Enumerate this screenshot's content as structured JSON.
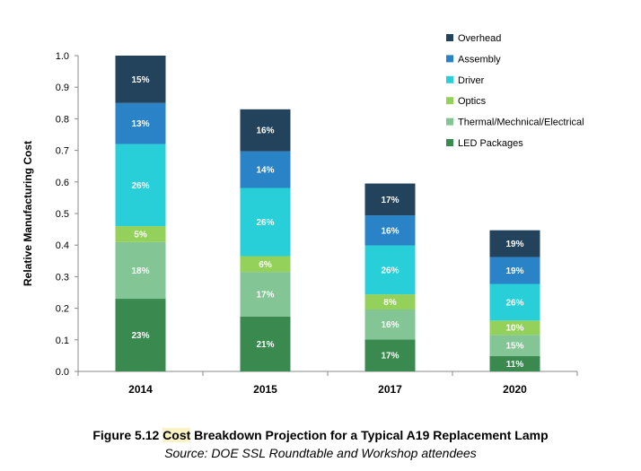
{
  "chart_data": {
    "type": "bar",
    "stacked": true,
    "ylabel": "Relative Manufacturing Cost",
    "xlabel": "",
    "ylim": [
      0,
      1.0
    ],
    "yticks": [
      "0.0",
      "0.1",
      "0.2",
      "0.3",
      "0.4",
      "0.5",
      "0.6",
      "0.7",
      "0.8",
      "0.9",
      "1.0"
    ],
    "grid": false,
    "legend_position": "top-right",
    "categories": [
      "2014",
      "2015",
      "2017",
      "2020"
    ],
    "totals": [
      1.0,
      0.83,
      0.595,
      0.447
    ],
    "series": [
      {
        "name": "LED Packages",
        "color": "#3a8a4f",
        "labels": [
          "23%",
          "21%",
          "17%",
          "11%"
        ],
        "values": [
          0.23,
          0.174,
          0.101,
          0.049
        ]
      },
      {
        "name": "Thermal/Mechnical/Electrical",
        "color": "#83c594",
        "labels": [
          "18%",
          "17%",
          "16%",
          "15%"
        ],
        "values": [
          0.18,
          0.141,
          0.095,
          0.067
        ]
      },
      {
        "name": "Optics",
        "color": "#94d15a",
        "labels": [
          "5%",
          "6%",
          "8%",
          "10%"
        ],
        "values": [
          0.05,
          0.05,
          0.048,
          0.045
        ]
      },
      {
        "name": "Driver",
        "color": "#28cfd8",
        "labels": [
          "26%",
          "26%",
          "26%",
          "26%"
        ],
        "values": [
          0.26,
          0.216,
          0.155,
          0.116
        ]
      },
      {
        "name": "Assembly",
        "color": "#2a83c6",
        "labels": [
          "13%",
          "14%",
          "16%",
          "19%"
        ],
        "values": [
          0.13,
          0.116,
          0.095,
          0.085
        ]
      },
      {
        "name": "Overhead",
        "color": "#23425b",
        "labels": [
          "15%",
          "16%",
          "17%",
          "19%"
        ],
        "values": [
          0.15,
          0.133,
          0.101,
          0.085
        ]
      }
    ]
  },
  "caption": {
    "figure_label": "Figure 5.12 ",
    "highlight_word": "Cost",
    "title_rest": " Breakdown Projection for a Typical A19 Replacement Lamp",
    "source": "Source: DOE SSL Roundtable and Workshop attendees"
  }
}
